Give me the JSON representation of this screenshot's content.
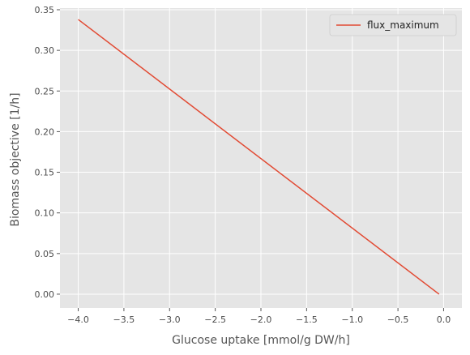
{
  "chart_data": {
    "type": "line",
    "title": "",
    "xlabel": "Glucose uptake [mmol/g DW/h]",
    "ylabel": "Biomass objective [1/h]",
    "xlim": [
      -4.2,
      0.2
    ],
    "ylim": [
      -0.017,
      0.352
    ],
    "xticks": [
      -4.0,
      -3.5,
      -3.0,
      -2.5,
      -2.0,
      -1.5,
      -1.0,
      -0.5,
      0.0
    ],
    "xtick_labels": [
      "−4.0",
      "−3.5",
      "−3.0",
      "−2.5",
      "−2.0",
      "−1.5",
      "−1.0",
      "−0.5",
      "0.0"
    ],
    "yticks": [
      0.0,
      0.05,
      0.1,
      0.15,
      0.2,
      0.25,
      0.3,
      0.35
    ],
    "ytick_labels": [
      "0.00",
      "0.05",
      "0.10",
      "0.15",
      "0.20",
      "0.25",
      "0.30",
      "0.35"
    ],
    "grid": true,
    "legend_position": "top-right",
    "series": [
      {
        "name": "flux_maximum",
        "color": "#e24a33",
        "x": [
          -4.0,
          -0.05
        ],
        "y": [
          0.338,
          0.0
        ]
      }
    ],
    "colors": {
      "plot_background": "#e5e5e5",
      "grid": "#ffffff",
      "line": "#e24a33"
    }
  }
}
